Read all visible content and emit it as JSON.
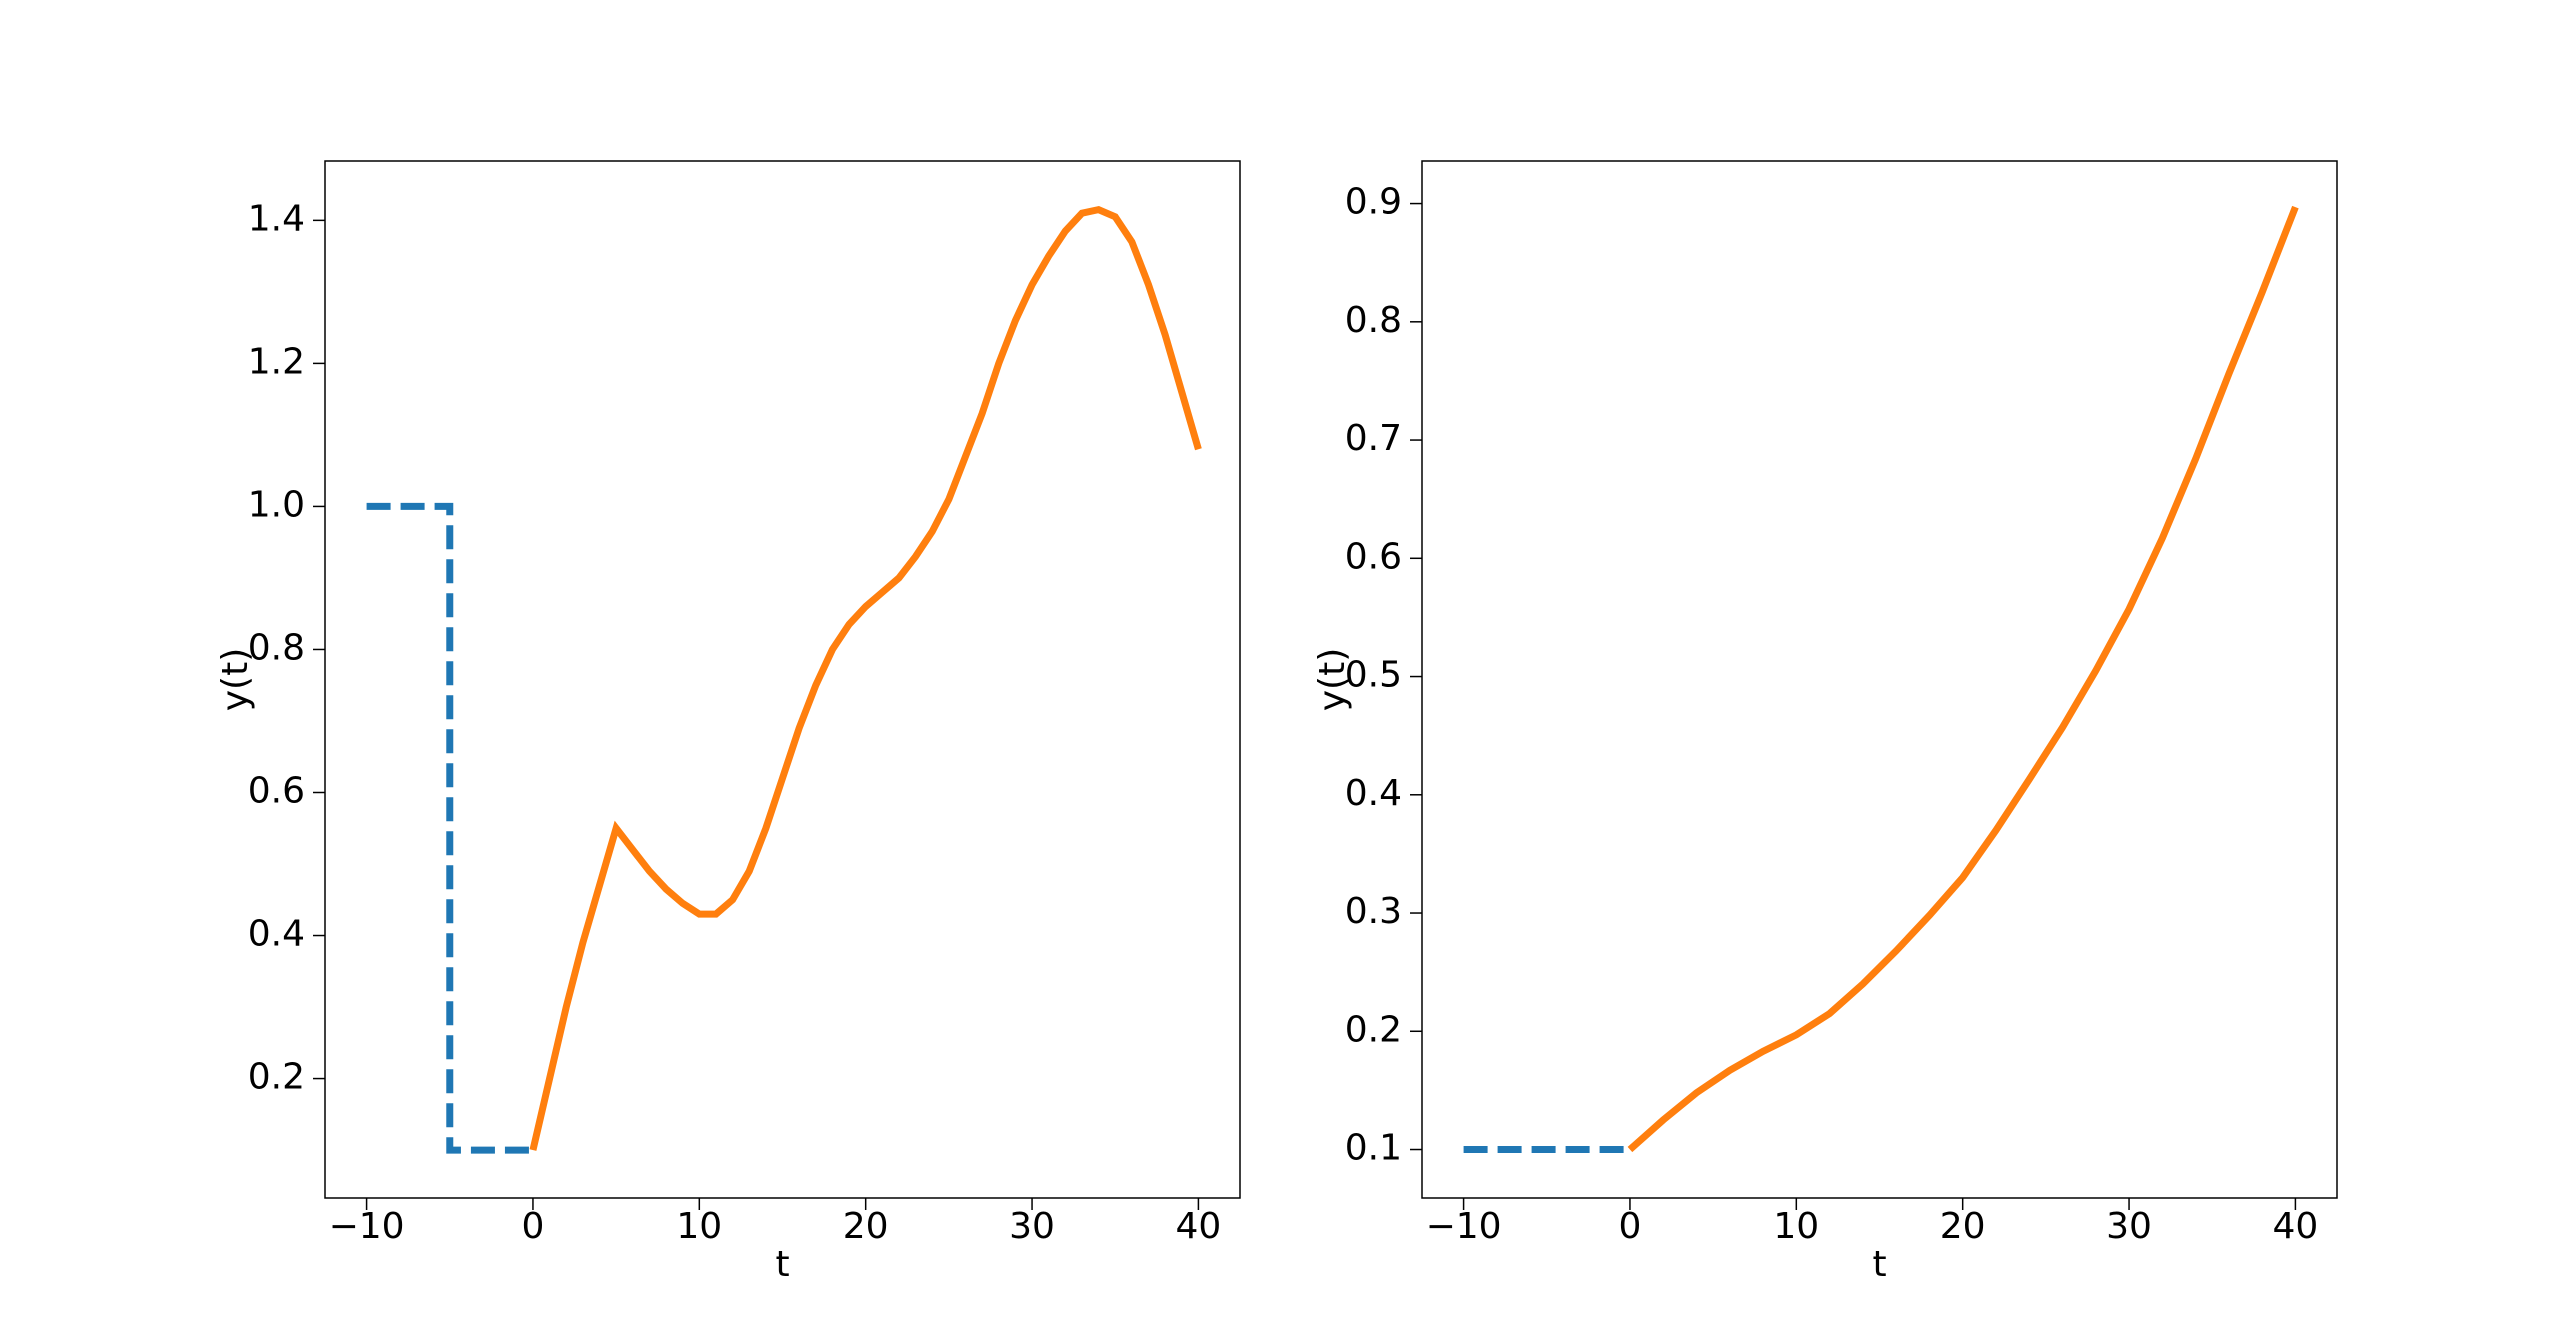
{
  "chart_data": [
    {
      "type": "line",
      "xlabel": "t",
      "ylabel": "y(t)",
      "xlim": [
        -12.5,
        42.5
      ],
      "ylim": [
        0.033,
        1.483
      ],
      "xticks": [
        {
          "value": -10,
          "label": "−10"
        },
        0,
        10,
        20,
        30,
        40
      ],
      "yticks": [
        0.2,
        0.4,
        0.6,
        0.8,
        {
          "value": 1,
          "label": "1.0"
        },
        1.2,
        1.4
      ],
      "series": [
        {
          "color": "#1f77b4",
          "linestyle": "dashed",
          "x": [
            -10,
            -5,
            -5,
            0
          ],
          "values": [
            1,
            1,
            0.1,
            0.1
          ]
        },
        {
          "color": "#ff7f0e",
          "linestyle": "solid",
          "x": [
            0,
            1,
            2,
            3,
            4,
            5,
            6,
            7,
            8,
            9,
            10,
            11,
            12,
            13,
            14,
            15,
            16,
            17,
            18,
            19,
            20,
            21,
            22,
            23,
            24,
            25,
            26,
            27,
            28,
            29,
            30,
            31,
            32,
            33,
            34,
            35,
            36,
            37,
            38,
            39,
            40
          ],
          "values": [
            0.1,
            0.2,
            0.3,
            0.39,
            0.47,
            0.55,
            0.52,
            0.49,
            0.465,
            0.445,
            0.43,
            0.43,
            0.45,
            0.49,
            0.55,
            0.62,
            0.69,
            0.75,
            0.8,
            0.835,
            0.86,
            0.88,
            0.9,
            0.93,
            0.965,
            1.01,
            1.07,
            1.13,
            1.2,
            1.26,
            1.31,
            1.35,
            1.385,
            1.41,
            1.415,
            1.405,
            1.37,
            1.31,
            1.24,
            1.16,
            1.08
          ]
        }
      ]
    },
    {
      "type": "line",
      "xlabel": "t",
      "ylabel": "y(t)",
      "xlim": [
        -12.5,
        42.5
      ],
      "ylim": [
        0.059,
        0.936
      ],
      "xticks": [
        {
          "value": -10,
          "label": "−10"
        },
        0,
        10,
        20,
        30,
        40
      ],
      "yticks": [
        0.1,
        0.2,
        0.3,
        0.4,
        0.5,
        0.6,
        0.7,
        0.8,
        0.9
      ],
      "series": [
        {
          "color": "#1f77b4",
          "linestyle": "dashed",
          "x": [
            -10,
            0
          ],
          "values": [
            0.1,
            0.1
          ]
        },
        {
          "color": "#ff7f0e",
          "linestyle": "solid",
          "x": [
            0,
            2,
            4,
            6,
            8,
            10,
            12,
            14,
            16,
            18,
            20,
            22,
            24,
            26,
            28,
            30,
            32,
            34,
            36,
            38,
            40
          ],
          "values": [
            0.1,
            0.125,
            0.148,
            0.167,
            0.183,
            0.197,
            0.215,
            0.24,
            0.268,
            0.298,
            0.33,
            0.37,
            0.413,
            0.457,
            0.505,
            0.557,
            0.617,
            0.684,
            0.756,
            0.825,
            0.897
          ]
        }
      ]
    }
  ]
}
